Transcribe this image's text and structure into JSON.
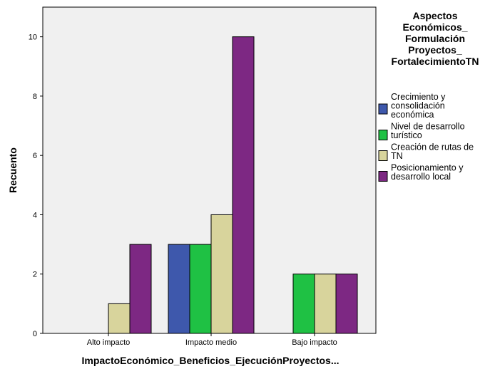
{
  "chart_data": {
    "type": "bar",
    "title": "",
    "xlabel": "ImpactoEconómico_Beneficios_EjecuciónProyectos...",
    "ylabel": "Recuento",
    "categories": [
      "Alto impacto",
      "Impacto medio",
      "Bajo impacto"
    ],
    "ylim": [
      0,
      11
    ],
    "yticks": [
      0,
      2,
      4,
      6,
      8,
      10
    ],
    "grid": false,
    "legend_position": "right",
    "legend_title": [
      "Aspectos",
      "Económicos_",
      "Formulación",
      "Proyectos_",
      "FortalecimientoTN"
    ],
    "series": [
      {
        "name": "Crecimiento y consolidación económica",
        "label_lines": [
          "Crecimiento y",
          "consolidación",
          "económica"
        ],
        "color": "#3e58ac",
        "values": [
          0,
          3,
          0
        ]
      },
      {
        "name": "Nivel de desarrollo turístico",
        "label_lines": [
          "Nivel de desarrollo",
          "turístico"
        ],
        "color": "#1fc144",
        "values": [
          0,
          3,
          2
        ]
      },
      {
        "name": "Creación de rutas de TN",
        "label_lines": [
          "Creación de rutas de",
          "TN"
        ],
        "color": "#d8d49c",
        "values": [
          1,
          4,
          2
        ]
      },
      {
        "name": "Posicionamiento y desarrollo local",
        "label_lines": [
          "Posicionamiento y",
          "desarrollo local"
        ],
        "color": "#7d2883",
        "values": [
          3,
          10,
          2
        ]
      }
    ],
    "plot_background": "#f0f0f0",
    "bar_outline": "#000000"
  }
}
